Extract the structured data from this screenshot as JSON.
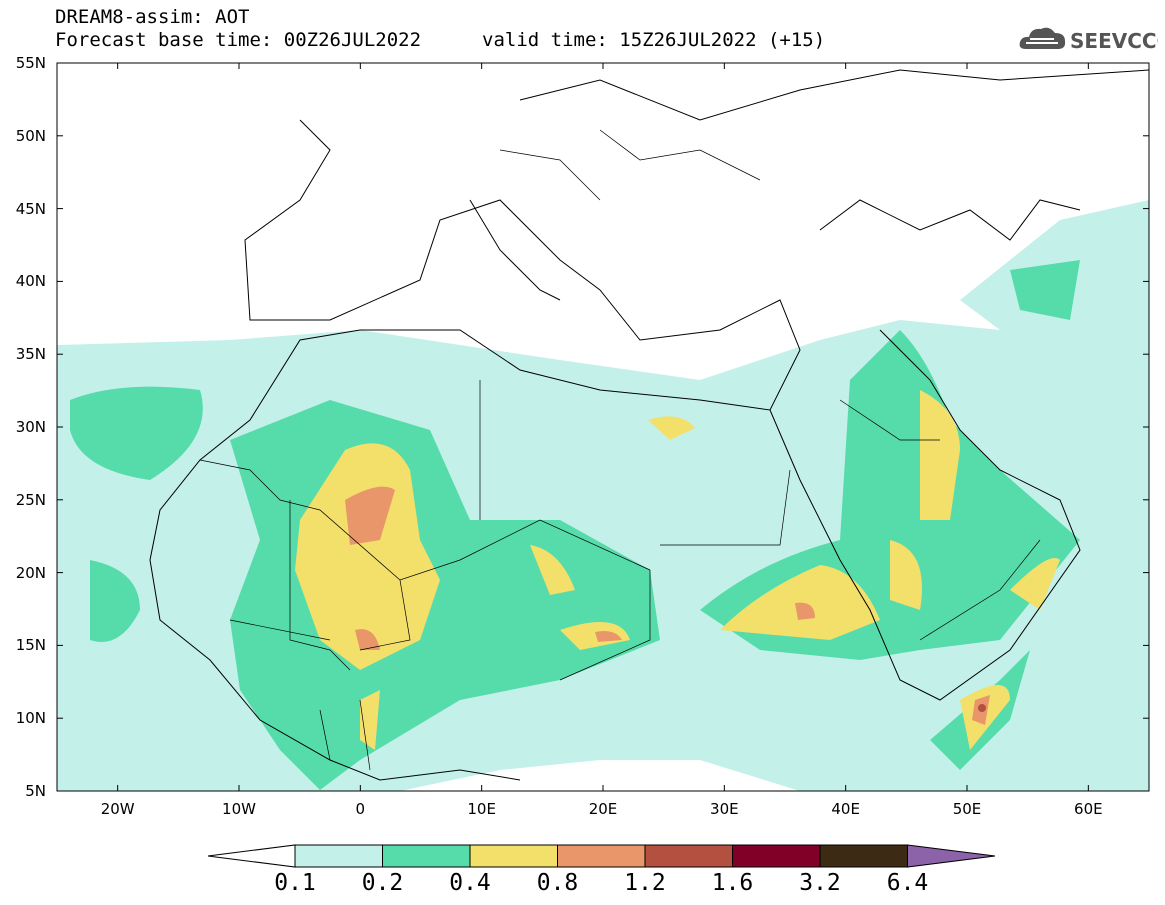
{
  "header": {
    "title": "DREAM8-assim: AOT",
    "base_time": "Forecast base time: 00Z26JUL2022",
    "valid_time": "valid time: 15Z26JUL2022 (+15)"
  },
  "logo": {
    "text": "SEEVCCC",
    "icon": "cloud-icon"
  },
  "map": {
    "lat_labels": [
      "55N",
      "50N",
      "45N",
      "40N",
      "35N",
      "30N",
      "25N",
      "20N",
      "15N",
      "10N",
      "5N"
    ],
    "lon_labels": [
      "20W",
      "10W",
      "0",
      "10E",
      "20E",
      "30E",
      "40E",
      "50E",
      "60E"
    ],
    "lon_range": [
      -25,
      65
    ],
    "lat_range": [
      5,
      55
    ]
  },
  "colorbar": {
    "labels": [
      "0.1",
      "0.2",
      "0.4",
      "0.8",
      "1.2",
      "1.6",
      "3.2",
      "6.4"
    ],
    "colors": [
      "#ffffff",
      "#c4f0ea",
      "#56dcaa",
      "#f2e06b",
      "#e9966a",
      "#b35040",
      "#800028",
      "#3d2a14",
      "#8c62a8"
    ]
  }
}
